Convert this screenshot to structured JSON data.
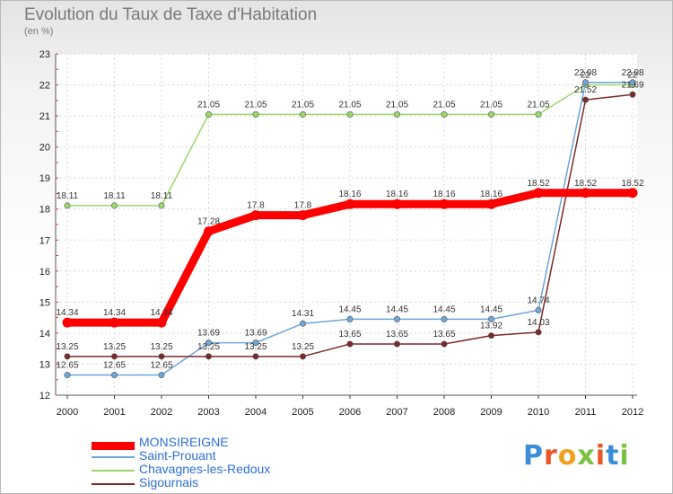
{
  "chart_data": {
    "type": "line",
    "title": "Evolution du Taux de Taxe d'Habitation",
    "subtitle": "(en %)",
    "x": [
      "2000",
      "2001",
      "2002",
      "2003",
      "2004",
      "2005",
      "2006",
      "2007",
      "2008",
      "2009",
      "2010",
      "2011",
      "2012"
    ],
    "ylim": [
      12,
      23
    ],
    "yticks": [
      12,
      13,
      14,
      15,
      16,
      17,
      18,
      19,
      20,
      21,
      22,
      23
    ],
    "grid": true,
    "legend_position": "bottom-left",
    "series": [
      {
        "name": "MONSIREIGNE",
        "color": "#ff0000",
        "values": [
          14.34,
          14.34,
          14.34,
          17.28,
          17.8,
          17.8,
          18.16,
          18.16,
          18.16,
          18.16,
          18.52,
          18.52,
          18.52
        ],
        "labels": [
          "14.34",
          "14.34",
          "14.34",
          "17.28",
          "17.8",
          "17.8",
          "18.16",
          "18.16",
          "18.16",
          "18.16",
          "18.52",
          "18.52",
          "18.52"
        ]
      },
      {
        "name": "Saint-Prouant",
        "color": "#6ea6d8",
        "values": [
          12.65,
          12.65,
          12.65,
          13.69,
          13.69,
          14.31,
          14.45,
          14.45,
          14.45,
          14.45,
          14.74,
          22.08,
          22.08
        ],
        "labels": [
          "12.65",
          "12.65",
          "12.65",
          "13.69",
          "13.69",
          "14.31",
          "14.45",
          "14.45",
          "14.45",
          "14.45",
          "14.74",
          "22.08",
          "22.08"
        ]
      },
      {
        "name": "Chavagnes-les-Redoux",
        "color": "#9bd86b",
        "values": [
          18.11,
          18.11,
          18.11,
          21.05,
          21.05,
          21.05,
          21.05,
          21.05,
          21.05,
          21.05,
          21.05,
          22.0,
          22.0
        ],
        "labels": [
          "18.11",
          "18.11",
          "18.11",
          "21.05",
          "21.05",
          "21.05",
          "21.05",
          "21.05",
          "21.05",
          "21.05",
          "21.05",
          "22",
          "22"
        ]
      },
      {
        "name": "Sigournais",
        "color": "#7b2a2a",
        "values": [
          13.25,
          13.25,
          13.25,
          13.25,
          13.25,
          13.25,
          13.65,
          13.65,
          13.65,
          13.92,
          14.03,
          21.52,
          21.69
        ],
        "labels": [
          "13.25",
          "13.25",
          "13.25",
          "13.25",
          "13.25",
          "13.25",
          "13.65",
          "13.65",
          "13.65",
          "13.92",
          "14.03",
          "21.52",
          "21.69"
        ]
      }
    ]
  },
  "logo": {
    "text": "Proxiti"
  }
}
